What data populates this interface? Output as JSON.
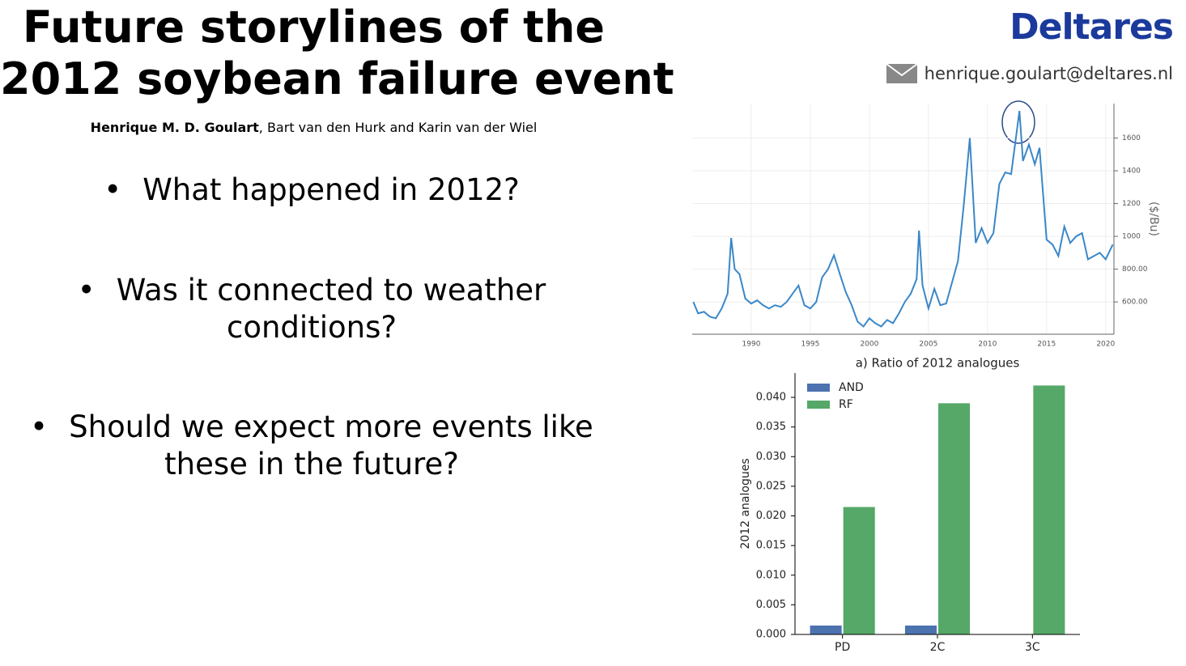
{
  "header": {
    "title_lines": [
      "Future storylines of the",
      "2012 soybean failure event"
    ],
    "lead_author": "Henrique M. D. Goulart",
    "other_authors": ", Bart van den Hurk and Karin van der Wiel",
    "logo": "Deltares",
    "email": "henrique.goulart@deltares.nl"
  },
  "bullets": [
    [
      "What happened in 2012?"
    ],
    [
      "Was it connected to weather",
      "conditions?"
    ],
    [
      "Should we expect more events like",
      "these in the future?"
    ]
  ],
  "chart_data": [
    {
      "type": "line",
      "y_label": "($/Bu)",
      "color": "#3a87c8",
      "grid": true,
      "xlim": [
        1985,
        2020.7
      ],
      "ylim": [
        403,
        1810
      ],
      "xticks": [
        1990,
        1995,
        2000,
        2005,
        2010,
        2015,
        2020
      ],
      "yticks": [
        {
          "value": 600,
          "label": "600.00"
        },
        {
          "value": 800,
          "label": "800.00"
        },
        1000,
        1200,
        1400,
        1600
      ],
      "x": [
        1985.1,
        1985.5,
        1986,
        1986.5,
        1987,
        1987.5,
        1988,
        1988.3,
        1988.6,
        1989,
        1989.5,
        1990,
        1990.5,
        1991,
        1991.5,
        1992,
        1992.5,
        1993,
        1993.5,
        1994,
        1994.5,
        1995,
        1995.5,
        1996,
        1996.5,
        1997,
        1997.5,
        1998,
        1998.5,
        1999,
        1999.5,
        2000,
        2000.5,
        2001,
        2001.5,
        2002,
        2002.5,
        2003,
        2003.5,
        2004,
        2004.2,
        2004.5,
        2005,
        2005.5,
        2006,
        2006.5,
        2007,
        2007.5,
        2008,
        2008.5,
        2009,
        2009.5,
        2010,
        2010.5,
        2011,
        2011.5,
        2012,
        2012.7,
        2013,
        2013.5,
        2014,
        2014.4,
        2015,
        2015.5,
        2016,
        2016.5,
        2017,
        2017.5,
        2018,
        2018.5,
        2019,
        2019.5,
        2020,
        2020.6
      ],
      "values": [
        600,
        530,
        540,
        510,
        500,
        560,
        650,
        990,
        800,
        770,
        620,
        590,
        610,
        580,
        560,
        580,
        570,
        600,
        650,
        700,
        580,
        560,
        600,
        750,
        800,
        885,
        770,
        660,
        580,
        480,
        450,
        500,
        470,
        450,
        490,
        470,
        530,
        600,
        650,
        740,
        1035,
        700,
        560,
        680,
        580,
        590,
        720,
        850,
        1200,
        1600,
        960,
        1050,
        960,
        1020,
        1320,
        1390,
        1380,
        1765,
        1460,
        1560,
        1440,
        1540,
        980,
        950,
        880,
        1060,
        960,
        1000,
        1020,
        860,
        880,
        900,
        860,
        950
      ]
    },
    {
      "type": "bar",
      "title": "a) Ratio of 2012 analogues",
      "y_label": "2012 analogues",
      "legend": "upper left",
      "categories": [
        "PD",
        "2C",
        "3C"
      ],
      "ylim": [
        0,
        0.0441
      ],
      "yticks": [
        {
          "value": 0,
          "label": "0.000"
        },
        {
          "value": 0.005,
          "label": "0.005"
        },
        {
          "value": 0.01,
          "label": "0.010"
        },
        {
          "value": 0.015,
          "label": "0.015"
        },
        {
          "value": 0.02,
          "label": "0.020"
        },
        {
          "value": 0.025,
          "label": "0.025"
        },
        {
          "value": 0.03,
          "label": "0.030"
        },
        {
          "value": 0.035,
          "label": "0.035"
        },
        {
          "value": 0.04,
          "label": "0.040"
        }
      ],
      "series": [
        {
          "name": "AND",
          "color": "#4c72b0",
          "values": [
            0.0015,
            0.0015,
            0
          ]
        },
        {
          "name": "RF",
          "color": "#55a868",
          "values": [
            0.0215,
            0.039,
            0.042
          ]
        }
      ]
    }
  ]
}
